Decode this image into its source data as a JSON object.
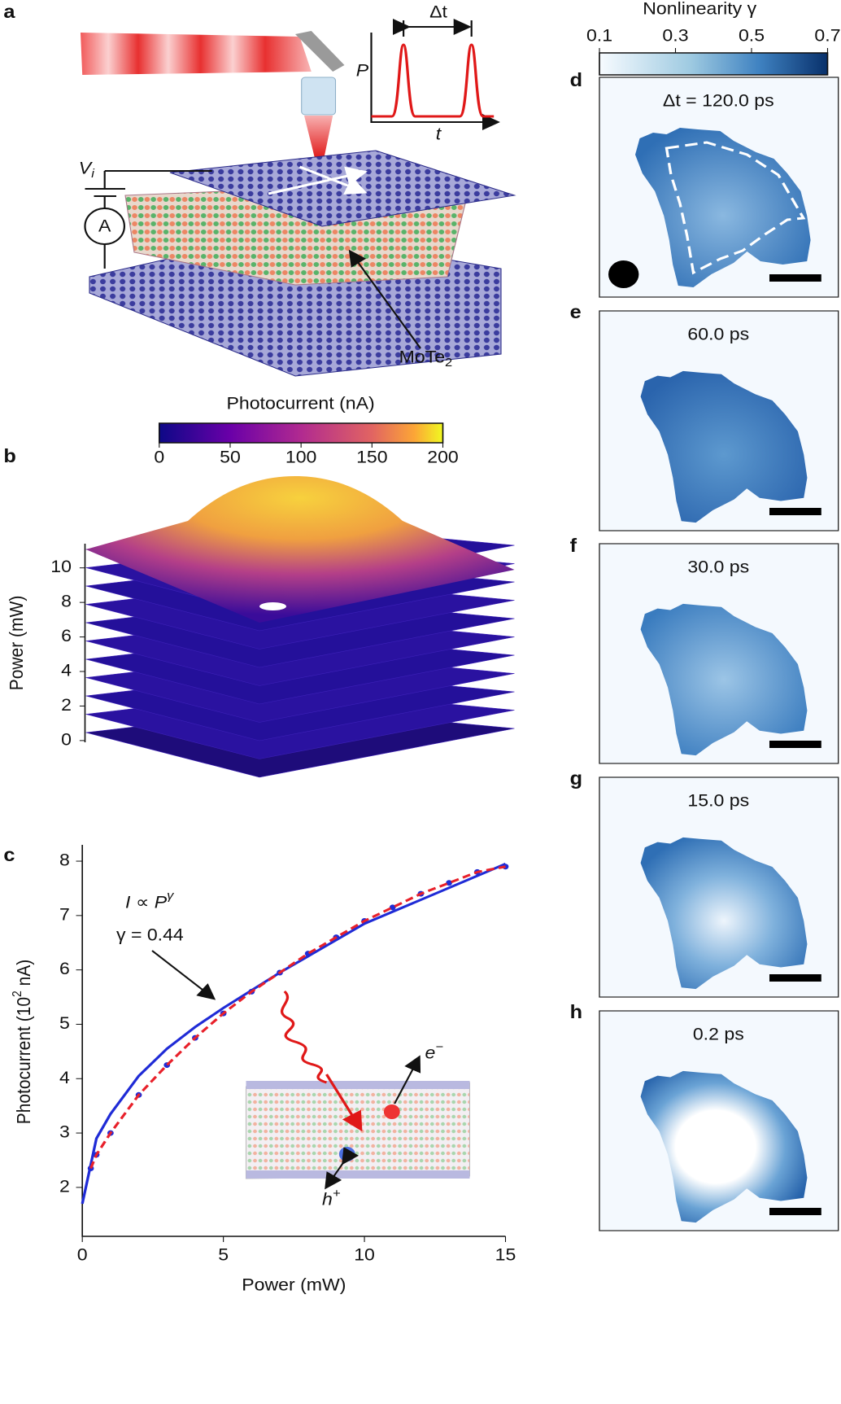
{
  "panel_labels": [
    "a",
    "b",
    "c",
    "d",
    "e",
    "f",
    "g",
    "h"
  ],
  "schematic": {
    "delta_t": "Δt",
    "axis_p": "P",
    "axis_t": "t",
    "voltage": "V",
    "voltage_sub": "i",
    "ammeter": "A",
    "material": "MoTe",
    "material_sub": "2"
  },
  "chart_data": [
    {
      "type": "surface-stack",
      "colorbar": {
        "title": "Photocurrent (nA)",
        "lim": [
          0,
          200
        ],
        "ticks": [
          0,
          50,
          100,
          150,
          200
        ]
      },
      "ylabel": "Power (mW)",
      "ylim": [
        -0.1,
        11.4
      ],
      "yticks": [
        0,
        2,
        4,
        6,
        8,
        10
      ]
    },
    {
      "type": "line",
      "xlabel": "Power (mW)",
      "ylabel": [
        "Photocurrent (10",
        "2",
        " nA)"
      ],
      "xlim": [
        0,
        15
      ],
      "ylim": [
        1.1,
        8.3
      ],
      "xticks": [
        0,
        5,
        10,
        15
      ],
      "yticks": [
        2,
        3,
        4,
        5,
        6,
        7,
        8
      ],
      "annotations": {
        "formula": "I ∝ P",
        "formula_sup": "γ",
        "fit": "γ = 0.44"
      },
      "inset": {
        "electron": "e",
        "electron_sup": "−",
        "hole": "h",
        "hole_sup": "+"
      },
      "series": [
        {
          "color": "#1f2bd6",
          "style": "solid",
          "x": [
            0,
            0.5,
            1,
            2,
            3,
            4,
            5,
            7,
            10,
            15
          ],
          "values": [
            1.7,
            2.9,
            3.35,
            4.05,
            4.55,
            4.95,
            5.3,
            5.95,
            6.85,
            7.95
          ]
        },
        {
          "color": "#1f2bd6",
          "style": "markers",
          "x": [
            0.3,
            0.5,
            1,
            2,
            3,
            4,
            5,
            6,
            7,
            8,
            9,
            10,
            11,
            12,
            13,
            14,
            15
          ],
          "values": [
            2.35,
            2.6,
            3.0,
            3.7,
            4.25,
            4.75,
            5.2,
            5.6,
            5.95,
            6.3,
            6.6,
            6.9,
            7.15,
            7.4,
            7.6,
            7.8,
            7.9
          ]
        },
        {
          "color": "#e8202a",
          "style": "dashed",
          "x": [
            0.3,
            0.5,
            1,
            2,
            3,
            4,
            5,
            6,
            7,
            8,
            9,
            10,
            11,
            12,
            13,
            14,
            15
          ],
          "values": [
            2.35,
            2.6,
            3.0,
            3.7,
            4.25,
            4.75,
            5.2,
            5.6,
            5.95,
            6.3,
            6.6,
            6.9,
            7.15,
            7.4,
            7.6,
            7.8,
            7.9
          ]
        }
      ]
    },
    {
      "type": "heatmap-panels",
      "colorbar": {
        "title": "Nonlinearity γ",
        "lim": [
          0.1,
          0.7
        ],
        "ticks": [
          0.1,
          0.3,
          0.5,
          0.7
        ]
      },
      "panels": [
        "Δt = 120.0 ps",
        "60.0 ps",
        "30.0 ps",
        "15.0 ps",
        "0.2 ps"
      ]
    }
  ]
}
